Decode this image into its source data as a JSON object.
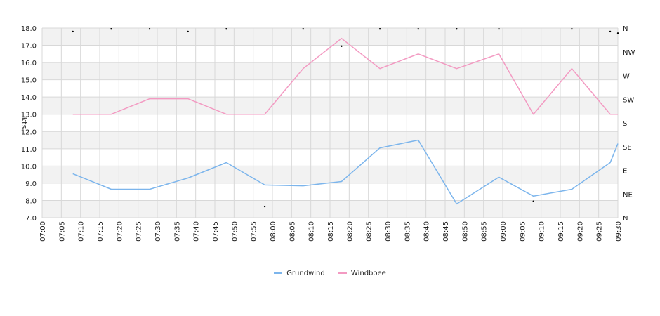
{
  "chart_data": {
    "type": "line",
    "xlabel": "",
    "ylabel": "kts",
    "ylim": [
      7.0,
      18.0
    ],
    "yticks": [
      "7.0",
      "8.0",
      "9.0",
      "10.0",
      "11.0",
      "12.0",
      "13.0",
      "14.0",
      "15.0",
      "16.0",
      "17.0",
      "18.0"
    ],
    "right_ticks": [
      "N",
      "NE",
      "E",
      "SE",
      "S",
      "SW",
      "W",
      "NW",
      "N"
    ],
    "xlim": [
      "07:00",
      "09:30"
    ],
    "xticks": [
      "07:00",
      "07:05",
      "07:10",
      "07:15",
      "07:20",
      "07:25",
      "07:30",
      "07:35",
      "07:40",
      "07:45",
      "07:50",
      "07:55",
      "08:00",
      "08:05",
      "08:10",
      "08:15",
      "08:20",
      "08:25",
      "08:30",
      "08:35",
      "08:40",
      "08:45",
      "08:50",
      "08:55",
      "09:00",
      "09:05",
      "09:10",
      "09:15",
      "09:20",
      "09:25",
      "09:30"
    ],
    "grid": true,
    "legend_position": "bottom",
    "series": [
      {
        "name": "Grundwind",
        "color": "#7cb5ec",
        "points": [
          {
            "x": "07:08",
            "y": 9.55
          },
          {
            "x": "07:18",
            "y": 8.65
          },
          {
            "x": "07:28",
            "y": 8.65
          },
          {
            "x": "07:38",
            "y": 9.3
          },
          {
            "x": "07:48",
            "y": 10.2
          },
          {
            "x": "07:58",
            "y": 8.9
          },
          {
            "x": "08:08",
            "y": 8.85
          },
          {
            "x": "08:18",
            "y": 9.1
          },
          {
            "x": "08:28",
            "y": 11.05
          },
          {
            "x": "08:38",
            "y": 11.5
          },
          {
            "x": "08:48",
            "y": 7.8
          },
          {
            "x": "08:59",
            "y": 9.35
          },
          {
            "x": "09:08",
            "y": 8.25
          },
          {
            "x": "09:18",
            "y": 8.65
          },
          {
            "x": "09:28",
            "y": 10.2
          },
          {
            "x": "09:30",
            "y": 11.3
          }
        ]
      },
      {
        "name": "Windboee",
        "color": "#f39ac2",
        "points": [
          {
            "x": "07:08",
            "y": 13.0
          },
          {
            "x": "07:18",
            "y": 13.0
          },
          {
            "x": "07:28",
            "y": 13.9
          },
          {
            "x": "07:38",
            "y": 13.9
          },
          {
            "x": "07:48",
            "y": 13.0
          },
          {
            "x": "07:58",
            "y": 13.0
          },
          {
            "x": "08:08",
            "y": 15.65
          },
          {
            "x": "08:18",
            "y": 17.4
          },
          {
            "x": "08:28",
            "y": 15.65
          },
          {
            "x": "08:38",
            "y": 16.5
          },
          {
            "x": "08:48",
            "y": 15.65
          },
          {
            "x": "08:59",
            "y": 16.5
          },
          {
            "x": "09:08",
            "y": 13.0
          },
          {
            "x": "09:18",
            "y": 15.65
          },
          {
            "x": "09:28",
            "y": 13.0
          },
          {
            "x": "09:30",
            "y": 13.0
          }
        ]
      }
    ],
    "direction_markers": [
      {
        "x": "07:08",
        "y": 17.8
      },
      {
        "x": "07:18",
        "y": 17.95
      },
      {
        "x": "07:28",
        "y": 17.95
      },
      {
        "x": "07:38",
        "y": 17.8
      },
      {
        "x": "07:48",
        "y": 17.95
      },
      {
        "x": "07:58",
        "y": 7.65
      },
      {
        "x": "08:08",
        "y": 17.95
      },
      {
        "x": "08:18",
        "y": 16.95
      },
      {
        "x": "08:28",
        "y": 17.95
      },
      {
        "x": "08:38",
        "y": 17.95
      },
      {
        "x": "08:48",
        "y": 17.95
      },
      {
        "x": "08:59",
        "y": 17.95
      },
      {
        "x": "09:08",
        "y": 7.95
      },
      {
        "x": "09:18",
        "y": 17.95
      },
      {
        "x": "09:28",
        "y": 17.8
      },
      {
        "x": "09:30",
        "y": 17.7
      }
    ]
  }
}
